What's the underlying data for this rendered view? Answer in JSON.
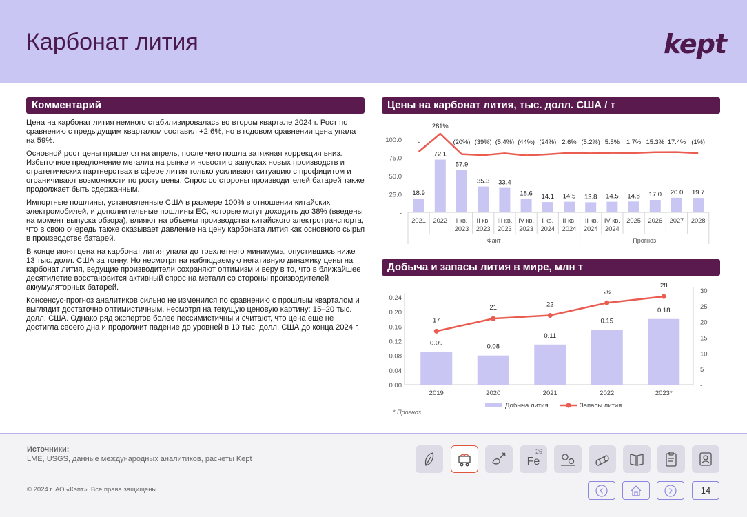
{
  "page": {
    "title": "Карбонат лития",
    "logo": "kept",
    "page_number": "14"
  },
  "comment": {
    "header": "Комментарий",
    "paragraphs": [
      "Цена на карбонат лития немного стабилизировалась во втором квартале 2024 г. Рост по сравнению с предыдущим кварталом составил +2,6%, но в годовом сравнении цена упала на 59%.",
      "Основной рост цены пришелся на апрель, после чего пошла затяжная коррекция вниз. Избыточное предложение металла на рынке и новости о запусках новых производств и стратегических партнерствах в сфере лития только усиливают ситуацию с профицитом и ограничивают возможности по росту цены. Спрос со стороны производителей батарей также продолжает быть сдержанным.",
      "Импортные пошлины, установленные США в размере 100% в отношении китайских электромобилей, и дополнительные пошлины ЕС, которые могут доходить до 38% (введены на момент выпуска обзора), влияют на объемы производства китайского электротранспорта, что в свою очередь также оказывает давление на цену карбоната лития как основного сырья в производстве батарей.",
      "В конце июня цена на карбонат лития упала до трехлетнего минимума, опустившись ниже 13 тыс. долл. США за тонну. Но несмотря на наблюдаемую негативную динамику цены на карбонат лития, ведущие производители сохраняют оптимизм и веру в то, что в ближайшее десятилетие восстановится активный спрос на металл со стороны производителей аккумуляторных батарей.",
      "Консенсус-прогноз аналитиков сильно не изменился по сравнению с прошлым кварталом и выглядит достаточно оптимистичным, несмотря на текущую ценовую картину: 15–20 тыс. долл. США. Однако ряд экспертов более пессимистичны и считают, что цена еще не достигла своего дна и продолжит падение до уровней в  10 тыс. долл. США до конца 2024 г."
    ]
  },
  "chart_data": [
    {
      "type": "bar",
      "title": "Цены на карбонат лития, тыс. долл. США / т",
      "categories": [
        "2021",
        "2022",
        "I кв. 2023",
        "II кв. 2023",
        "III кв. 2023",
        "IV кв. 2023",
        "I кв. 2024",
        "II кв. 2024",
        "III кв. 2024",
        "IV кв. 2024",
        "2025",
        "2026",
        "2027",
        "2028"
      ],
      "values": [
        18.9,
        72.1,
        57.9,
        35.3,
        33.4,
        18.6,
        14.1,
        14.5,
        13.8,
        14.5,
        14.8,
        17.0,
        20.0,
        19.7
      ],
      "value_labels": [
        "18.9",
        "72.1",
        "57.9",
        "35.3",
        "33.4",
        "18.6",
        "14.1",
        "14.5",
        "13.8",
        "14.5",
        "14.8",
        "17.0",
        "20.0",
        "19.7"
      ],
      "change_labels": [
        "-",
        "281%",
        "(20%)",
        "(39%)",
        "(5.4%)",
        "(44%)",
        "(24%)",
        "2.6%",
        "(5.2%)",
        "5.5%",
        "1.7%",
        "15.3%",
        "17.4%",
        "(1%)"
      ],
      "change_values": [
        null,
        281,
        -20,
        -39,
        -5.4,
        -44,
        -24,
        2.6,
        -5.2,
        5.5,
        1.7,
        15.3,
        17.4,
        -1
      ],
      "yticks": [
        "100.0",
        "75.0",
        "50.0",
        "25.0",
        "-"
      ],
      "ylim": [
        0,
        100
      ],
      "groups": [
        {
          "label": "Факт",
          "from": 0,
          "to": 7
        },
        {
          "label": "Прогноз",
          "from": 8,
          "to": 13
        }
      ],
      "colors": {
        "bar": "#c9c6f3",
        "line": "#ea5b50"
      }
    },
    {
      "type": "bar",
      "title": "Добыча и запасы лития в мире, млн т",
      "categories": [
        "2019",
        "2020",
        "2021",
        "2022",
        "2023*"
      ],
      "series": [
        {
          "name": "Добыча лития",
          "type": "bar",
          "axis": "left",
          "values": [
            0.09,
            0.08,
            0.11,
            0.15,
            0.18
          ],
          "labels": [
            "0.09",
            "0.08",
            "0.11",
            "0.15",
            "0.18"
          ],
          "color": "#c9c6f3"
        },
        {
          "name": "Запасы лития",
          "type": "line",
          "axis": "right",
          "values": [
            17,
            21,
            22,
            26,
            28
          ],
          "labels": [
            "17",
            "21",
            "22",
            "26",
            "28"
          ],
          "color": "#ea5b50"
        }
      ],
      "left_ticks": [
        "0.24",
        "0.20",
        "0.16",
        "0.12",
        "0.08",
        "0.04",
        "0.00"
      ],
      "right_ticks": [
        "30",
        "25",
        "20",
        "15",
        "10",
        "5",
        "-"
      ],
      "ylim_left": [
        0,
        0.26
      ],
      "ylim_right": [
        0,
        30
      ],
      "footnote": "* Прогноз"
    }
  ],
  "footer": {
    "sources_title": "Источники:",
    "sources_text": "LME, USGS, данные международных аналитиков, расчеты Kept",
    "copyright": "© 2024 г. АО «Кэпт». Все права защищены.",
    "fe_sup": "26",
    "fe_symbol": "Fe"
  },
  "nav_icons": [
    "leaf-icon",
    "mine-cart-icon",
    "ore-pickaxe-icon",
    "iron-element-icon",
    "factory-gears-icon",
    "pipes-icon",
    "book-icon",
    "clipboard-icon",
    "user-badge-icon"
  ],
  "colors": {
    "header_bg": "#c9c6f3",
    "title": "#4a1a4e",
    "section_bar": "#5a1a4e",
    "accent": "#ea5b50"
  }
}
